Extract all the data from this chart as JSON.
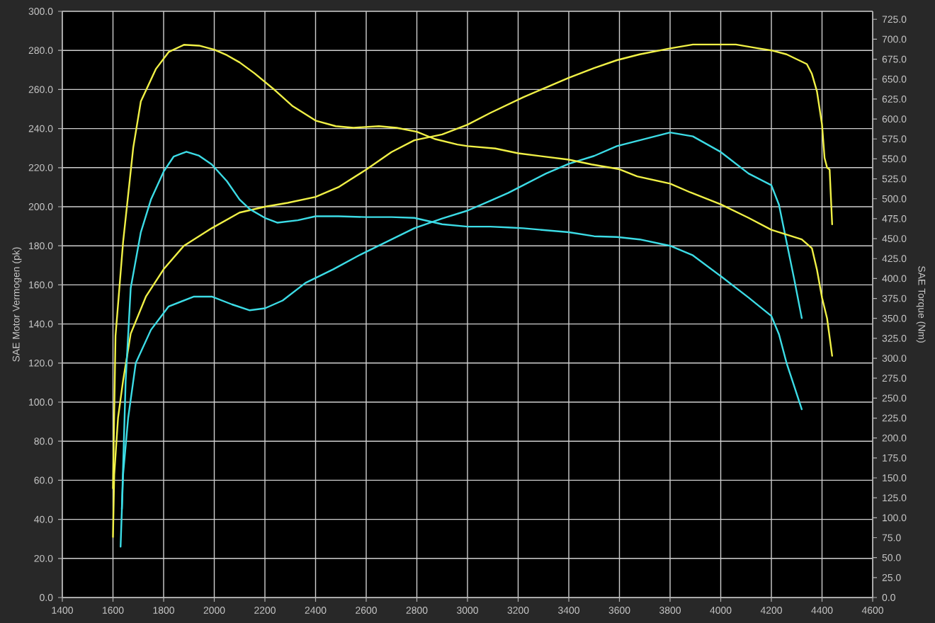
{
  "chart_data": {
    "type": "line",
    "ylabel": "SAE Motor Vermogen (pk)",
    "y2label": "SAE Torque (Nm)",
    "xlim": [
      1400,
      4600
    ],
    "xticks": [
      1400,
      1600,
      1800,
      2000,
      2200,
      2400,
      2600,
      2800,
      3000,
      3200,
      3400,
      3600,
      3800,
      4000,
      4200,
      4400,
      4600
    ],
    "ylim": [
      0,
      300
    ],
    "yticks": [
      {
        "value": 0,
        "label": "0.0"
      },
      {
        "value": 20,
        "label": "20.0"
      },
      {
        "value": 40,
        "label": "40.0"
      },
      {
        "value": 60,
        "label": "60.0"
      },
      {
        "value": 80,
        "label": "80.0"
      },
      {
        "value": 100,
        "label": "100.0"
      },
      {
        "value": 120,
        "label": "120.0"
      },
      {
        "value": 140,
        "label": "140.0"
      },
      {
        "value": 160,
        "label": "160.0"
      },
      {
        "value": 180,
        "label": "180.0"
      },
      {
        "value": 200,
        "label": "200.0"
      },
      {
        "value": 220,
        "label": "220.0"
      },
      {
        "value": 240,
        "label": "240.0"
      },
      {
        "value": 260,
        "label": "260.0"
      },
      {
        "value": 280,
        "label": "280.0"
      },
      {
        "value": 300,
        "label": "300.0"
      }
    ],
    "y2lim": [
      0,
      735
    ],
    "y2ticks": [
      {
        "value": 0,
        "label": "0.0"
      },
      {
        "value": 25,
        "label": "25.0"
      },
      {
        "value": 50,
        "label": "50.0"
      },
      {
        "value": 75,
        "label": "75.0"
      },
      {
        "value": 100,
        "label": "100.0"
      },
      {
        "value": 125,
        "label": "125.0"
      },
      {
        "value": 150,
        "label": "150.0"
      },
      {
        "value": 175,
        "label": "175.0"
      },
      {
        "value": 200,
        "label": "200.0"
      },
      {
        "value": 225,
        "label": "225.0"
      },
      {
        "value": 250,
        "label": "250.0"
      },
      {
        "value": 275,
        "label": "275.0"
      },
      {
        "value": 300,
        "label": "300.0"
      },
      {
        "value": 325,
        "label": "325.0"
      },
      {
        "value": 350,
        "label": "350.0"
      },
      {
        "value": 375,
        "label": "375.0"
      },
      {
        "value": 400,
        "label": "400.0"
      },
      {
        "value": 425,
        "label": "425.0"
      },
      {
        "value": 450,
        "label": "450.0"
      },
      {
        "value": 475,
        "label": "475.0"
      },
      {
        "value": 500,
        "label": "500.0"
      },
      {
        "value": 525,
        "label": "525.0"
      },
      {
        "value": 550,
        "label": "550.0"
      },
      {
        "value": 575,
        "label": "575.0"
      },
      {
        "value": 600,
        "label": "600.0"
      },
      {
        "value": 625,
        "label": "625.0"
      },
      {
        "value": 650,
        "label": "650.0"
      },
      {
        "value": 675,
        "label": "675.0"
      },
      {
        "value": 700,
        "label": "700.0"
      },
      {
        "value": 725,
        "label": "725.0"
      }
    ],
    "grid": true,
    "series": [
      {
        "color": "#f0f046",
        "x": [
          1600,
          1605,
          1620,
          1640,
          1670,
          1730,
          1800,
          1880,
          1990,
          2100,
          2200,
          2290,
          2400,
          2490,
          2600,
          2700,
          2790,
          2900,
          3000,
          3090,
          3220,
          3310,
          3400,
          3500,
          3590,
          3680,
          3800,
          3890,
          4000,
          4060,
          4150,
          4200,
          4260,
          4340,
          4360,
          4380,
          4400,
          4410,
          4420,
          4430,
          4440
        ],
        "values": [
          31,
          63,
          92,
          111,
          135,
          154,
          168,
          180,
          189,
          197,
          200,
          202,
          205,
          210,
          219,
          228,
          234,
          237,
          242,
          248,
          256,
          261,
          266,
          271,
          275,
          278,
          281,
          283,
          283,
          283,
          281,
          280,
          278,
          273,
          268,
          259,
          242,
          225,
          220,
          219,
          191
        ]
      },
      {
        "color": "#f0f046",
        "axis": "y2",
        "x": [
          1600,
          1610,
          1640,
          1680,
          1710,
          1770,
          1820,
          1880,
          1940,
          2000,
          2050,
          2100,
          2160,
          2240,
          2310,
          2400,
          2480,
          2550,
          2650,
          2720,
          2800,
          2870,
          2960,
          3000,
          3110,
          3200,
          3400,
          3490,
          3600,
          3670,
          3800,
          3880,
          4000,
          4110,
          4200,
          4320,
          4360,
          4380,
          4400,
          4420,
          4440
        ],
        "values": [
          137,
          328,
          446,
          564,
          622,
          663,
          684,
          693,
          692,
          687,
          680,
          671,
          657,
          636,
          616,
          598,
          591,
          589,
          591,
          589,
          584,
          575,
          568,
          566,
          563,
          557,
          549,
          543,
          537,
          528,
          519,
          508,
          493,
          476,
          461,
          449,
          438,
          411,
          376,
          350,
          303
        ]
      },
      {
        "color": "#3cdce6",
        "x": [
          1630,
          1640,
          1660,
          1690,
          1750,
          1820,
          1920,
          1990,
          2070,
          2140,
          2200,
          2270,
          2360,
          2470,
          2570,
          2680,
          2790,
          2900,
          3000,
          3090,
          3160,
          3220,
          3310,
          3400,
          3500,
          3590,
          3680,
          3800,
          3890,
          4000,
          4110,
          4200,
          4230,
          4260,
          4290,
          4320
        ],
        "values": [
          26,
          63,
          92,
          120,
          137,
          149,
          154,
          154,
          150,
          147,
          148,
          152,
          161,
          168,
          175,
          182,
          189,
          194,
          198,
          203,
          207,
          211,
          217,
          222,
          226,
          231,
          234,
          238,
          236,
          228,
          217,
          211,
          201,
          182,
          163,
          143
        ]
      },
      {
        "color": "#3cdce6",
        "axis": "y2",
        "x": [
          1635,
          1650,
          1670,
          1710,
          1750,
          1800,
          1840,
          1890,
          1940,
          1990,
          2050,
          2100,
          2140,
          2200,
          2250,
          2330,
          2400,
          2490,
          2600,
          2700,
          2790,
          2900,
          3000,
          3090,
          3160,
          3220,
          3400,
          3500,
          3590,
          3680,
          3800,
          3890,
          4000,
          4110,
          4200,
          4230,
          4260,
          4290,
          4320
        ],
        "values": [
          111,
          271,
          388,
          458,
          499,
          534,
          553,
          559,
          554,
          543,
          522,
          499,
          487,
          476,
          470,
          473,
          478,
          478,
          477,
          477,
          476,
          468,
          465,
          465,
          464,
          463,
          458,
          453,
          452,
          449,
          441,
          429,
          403,
          376,
          353,
          330,
          294,
          265,
          236
        ]
      }
    ]
  }
}
